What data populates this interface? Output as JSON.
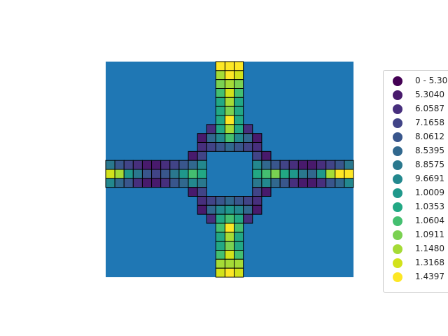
{
  "chart_data": {
    "type": "heatmap",
    "title": "",
    "xlabel": "",
    "ylabel": "",
    "background_color": "#1f77b4",
    "cell_edge_color": "#000000",
    "legend": {
      "placement": "right",
      "entries": [
        {
          "label": "0 - 5.30",
          "color": "#440154"
        },
        {
          "label": "5.3040",
          "color": "#481a6c"
        },
        {
          "label": "6.0587",
          "color": "#472f7d"
        },
        {
          "label": "7.1658",
          "color": "#414487"
        },
        {
          "label": "8.0612",
          "color": "#39568c"
        },
        {
          "label": "8.5395",
          "color": "#31688e"
        },
        {
          "label": "8.8575",
          "color": "#2a788e"
        },
        {
          "label": "9.6691",
          "color": "#23888e"
        },
        {
          "label": "1.0009",
          "color": "#1f988b"
        },
        {
          "label": "1.0353",
          "color": "#22a884"
        },
        {
          "label": "1.0604",
          "color": "#44bf70"
        },
        {
          "label": "1.0911",
          "color": "#7ad151"
        },
        {
          "label": "1.1480",
          "color": "#a5db36"
        },
        {
          "label": "1.3168",
          "color": "#d2e21b"
        },
        {
          "label": "1.4397",
          "color": "#fde725"
        }
      ]
    },
    "grid_cols": 27,
    "grid_rows": 24,
    "cells": [
      {
        "col": 12,
        "row": 0,
        "class": 14
      },
      {
        "col": 13,
        "row": 0,
        "class": 14
      },
      {
        "col": 14,
        "row": 0,
        "class": 14
      },
      {
        "col": 12,
        "row": 1,
        "class": 12
      },
      {
        "col": 13,
        "row": 1,
        "class": 14
      },
      {
        "col": 14,
        "row": 1,
        "class": 13
      },
      {
        "col": 12,
        "row": 2,
        "class": 11
      },
      {
        "col": 13,
        "row": 2,
        "class": 12
      },
      {
        "col": 14,
        "row": 2,
        "class": 11
      },
      {
        "col": 12,
        "row": 3,
        "class": 10
      },
      {
        "col": 13,
        "row": 3,
        "class": 13
      },
      {
        "col": 14,
        "row": 3,
        "class": 10
      },
      {
        "col": 12,
        "row": 4,
        "class": 9
      },
      {
        "col": 13,
        "row": 4,
        "class": 12
      },
      {
        "col": 14,
        "row": 4,
        "class": 9
      },
      {
        "col": 12,
        "row": 5,
        "class": 9
      },
      {
        "col": 13,
        "row": 5,
        "class": 11
      },
      {
        "col": 14,
        "row": 5,
        "class": 9
      },
      {
        "col": 12,
        "row": 6,
        "class": 9
      },
      {
        "col": 13,
        "row": 6,
        "class": 14
      },
      {
        "col": 14,
        "row": 6,
        "class": 9
      },
      {
        "col": 12,
        "row": 7,
        "class": 9
      },
      {
        "col": 13,
        "row": 7,
        "class": 12
      },
      {
        "col": 14,
        "row": 7,
        "class": 9
      },
      {
        "col": 11,
        "row": 7,
        "class": 2
      },
      {
        "col": 15,
        "row": 7,
        "class": 2
      },
      {
        "col": 10,
        "row": 8,
        "class": 1
      },
      {
        "col": 11,
        "row": 8,
        "class": 5
      },
      {
        "col": 12,
        "row": 8,
        "class": 7
      },
      {
        "col": 13,
        "row": 8,
        "class": 10
      },
      {
        "col": 14,
        "row": 8,
        "class": 7
      },
      {
        "col": 15,
        "row": 8,
        "class": 5
      },
      {
        "col": 16,
        "row": 8,
        "class": 1
      },
      {
        "col": 10,
        "row": 9,
        "class": 2
      },
      {
        "col": 11,
        "row": 9,
        "class": 3
      },
      {
        "col": 12,
        "row": 9,
        "class": 4
      },
      {
        "col": 13,
        "row": 9,
        "class": 5
      },
      {
        "col": 14,
        "row": 9,
        "class": 4
      },
      {
        "col": 15,
        "row": 9,
        "class": 3
      },
      {
        "col": 16,
        "row": 9,
        "class": 2
      },
      {
        "col": 9,
        "row": 10,
        "class": 1
      },
      {
        "col": 10,
        "row": 10,
        "class": 3
      },
      {
        "col": 16,
        "row": 10,
        "class": 3
      },
      {
        "col": 17,
        "row": 10,
        "class": 1
      },
      {
        "col": 0,
        "row": 11,
        "class": 6
      },
      {
        "col": 1,
        "row": 11,
        "class": 4
      },
      {
        "col": 2,
        "row": 11,
        "class": 3
      },
      {
        "col": 3,
        "row": 11,
        "class": 2
      },
      {
        "col": 4,
        "row": 11,
        "class": 1
      },
      {
        "col": 5,
        "row": 11,
        "class": 1
      },
      {
        "col": 6,
        "row": 11,
        "class": 2
      },
      {
        "col": 7,
        "row": 11,
        "class": 3
      },
      {
        "col": 8,
        "row": 11,
        "class": 4
      },
      {
        "col": 9,
        "row": 11,
        "class": 5
      },
      {
        "col": 10,
        "row": 11,
        "class": 7
      },
      {
        "col": 16,
        "row": 11,
        "class": 7
      },
      {
        "col": 17,
        "row": 11,
        "class": 5
      },
      {
        "col": 18,
        "row": 11,
        "class": 4
      },
      {
        "col": 19,
        "row": 11,
        "class": 3
      },
      {
        "col": 20,
        "row": 11,
        "class": 2
      },
      {
        "col": 21,
        "row": 11,
        "class": 1
      },
      {
        "col": 22,
        "row": 11,
        "class": 1
      },
      {
        "col": 23,
        "row": 11,
        "class": 2
      },
      {
        "col": 24,
        "row": 11,
        "class": 3
      },
      {
        "col": 25,
        "row": 11,
        "class": 4
      },
      {
        "col": 26,
        "row": 11,
        "class": 6
      },
      {
        "col": 0,
        "row": 12,
        "class": 13
      },
      {
        "col": 1,
        "row": 12,
        "class": 12
      },
      {
        "col": 2,
        "row": 12,
        "class": 8
      },
      {
        "col": 3,
        "row": 12,
        "class": 6
      },
      {
        "col": 4,
        "row": 12,
        "class": 4
      },
      {
        "col": 5,
        "row": 12,
        "class": 3
      },
      {
        "col": 6,
        "row": 12,
        "class": 4
      },
      {
        "col": 7,
        "row": 12,
        "class": 6
      },
      {
        "col": 8,
        "row": 12,
        "class": 8
      },
      {
        "col": 9,
        "row": 12,
        "class": 10
      },
      {
        "col": 10,
        "row": 12,
        "class": 9
      },
      {
        "col": 16,
        "row": 12,
        "class": 9
      },
      {
        "col": 17,
        "row": 12,
        "class": 10
      },
      {
        "col": 18,
        "row": 12,
        "class": 11
      },
      {
        "col": 19,
        "row": 12,
        "class": 9
      },
      {
        "col": 20,
        "row": 12,
        "class": 8
      },
      {
        "col": 21,
        "row": 12,
        "class": 6
      },
      {
        "col": 22,
        "row": 12,
        "class": 5
      },
      {
        "col": 23,
        "row": 12,
        "class": 8
      },
      {
        "col": 24,
        "row": 12,
        "class": 12
      },
      {
        "col": 25,
        "row": 12,
        "class": 14
      },
      {
        "col": 26,
        "row": 12,
        "class": 14
      },
      {
        "col": 0,
        "row": 13,
        "class": 7
      },
      {
        "col": 1,
        "row": 13,
        "class": 5
      },
      {
        "col": 2,
        "row": 13,
        "class": 4
      },
      {
        "col": 3,
        "row": 13,
        "class": 2
      },
      {
        "col": 4,
        "row": 13,
        "class": 1
      },
      {
        "col": 5,
        "row": 13,
        "class": 1
      },
      {
        "col": 6,
        "row": 13,
        "class": 2
      },
      {
        "col": 7,
        "row": 13,
        "class": 4
      },
      {
        "col": 8,
        "row": 13,
        "class": 5
      },
      {
        "col": 9,
        "row": 13,
        "class": 7
      },
      {
        "col": 10,
        "row": 13,
        "class": 6
      },
      {
        "col": 16,
        "row": 13,
        "class": 6
      },
      {
        "col": 17,
        "row": 13,
        "class": 7
      },
      {
        "col": 18,
        "row": 13,
        "class": 5
      },
      {
        "col": 19,
        "row": 13,
        "class": 4
      },
      {
        "col": 20,
        "row": 13,
        "class": 2
      },
      {
        "col": 21,
        "row": 13,
        "class": 1
      },
      {
        "col": 22,
        "row": 13,
        "class": 1
      },
      {
        "col": 23,
        "row": 13,
        "class": 2
      },
      {
        "col": 24,
        "row": 13,
        "class": 4
      },
      {
        "col": 25,
        "row": 13,
        "class": 5
      },
      {
        "col": 26,
        "row": 13,
        "class": 7
      },
      {
        "col": 9,
        "row": 14,
        "class": 1
      },
      {
        "col": 10,
        "row": 14,
        "class": 3
      },
      {
        "col": 16,
        "row": 14,
        "class": 3
      },
      {
        "col": 17,
        "row": 14,
        "class": 1
      },
      {
        "col": 10,
        "row": 15,
        "class": 2
      },
      {
        "col": 11,
        "row": 15,
        "class": 3
      },
      {
        "col": 12,
        "row": 15,
        "class": 4
      },
      {
        "col": 13,
        "row": 15,
        "class": 5
      },
      {
        "col": 14,
        "row": 15,
        "class": 4
      },
      {
        "col": 15,
        "row": 15,
        "class": 3
      },
      {
        "col": 16,
        "row": 15,
        "class": 2
      },
      {
        "col": 10,
        "row": 16,
        "class": 1
      },
      {
        "col": 11,
        "row": 16,
        "class": 5
      },
      {
        "col": 12,
        "row": 16,
        "class": 7
      },
      {
        "col": 13,
        "row": 16,
        "class": 8
      },
      {
        "col": 14,
        "row": 16,
        "class": 7
      },
      {
        "col": 15,
        "row": 16,
        "class": 5
      },
      {
        "col": 16,
        "row": 16,
        "class": 1
      },
      {
        "col": 11,
        "row": 17,
        "class": 2
      },
      {
        "col": 15,
        "row": 17,
        "class": 2
      },
      {
        "col": 12,
        "row": 17,
        "class": 9
      },
      {
        "col": 13,
        "row": 17,
        "class": 10
      },
      {
        "col": 14,
        "row": 17,
        "class": 9
      },
      {
        "col": 12,
        "row": 18,
        "class": 10
      },
      {
        "col": 13,
        "row": 18,
        "class": 14
      },
      {
        "col": 14,
        "row": 18,
        "class": 10
      },
      {
        "col": 12,
        "row": 19,
        "class": 9
      },
      {
        "col": 13,
        "row": 19,
        "class": 12
      },
      {
        "col": 14,
        "row": 19,
        "class": 9
      },
      {
        "col": 12,
        "row": 20,
        "class": 9
      },
      {
        "col": 13,
        "row": 20,
        "class": 11
      },
      {
        "col": 14,
        "row": 20,
        "class": 9
      },
      {
        "col": 12,
        "row": 21,
        "class": 10
      },
      {
        "col": 13,
        "row": 21,
        "class": 13
      },
      {
        "col": 14,
        "row": 21,
        "class": 10
      },
      {
        "col": 12,
        "row": 22,
        "class": 12
      },
      {
        "col": 13,
        "row": 22,
        "class": 12
      },
      {
        "col": 14,
        "row": 22,
        "class": 12
      },
      {
        "col": 12,
        "row": 23,
        "class": 13
      },
      {
        "col": 13,
        "row": 23,
        "class": 14
      },
      {
        "col": 14,
        "row": 23,
        "class": 13
      }
    ]
  }
}
